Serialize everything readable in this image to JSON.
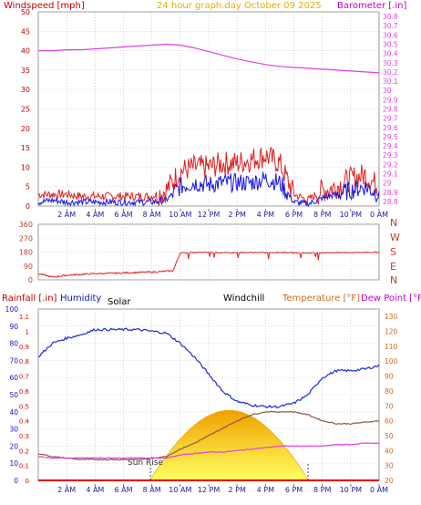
{
  "header": {
    "left_title": "Windspeed [mph]",
    "center_title": "24 hour graph.day   October 09 2025",
    "right_title": "Barometer [.in]"
  },
  "colors": {
    "wind_gust": "#e02020",
    "wind_avg": "#1414e6",
    "barometer": "#e040e0",
    "direction": "#e02020",
    "humidity": "#1e2ad0",
    "temperature": "#8a5a3c",
    "dew_point": "#e040e0",
    "temp_axis": "#d2691e",
    "solar_fill_top": "#f0a000",
    "solar_fill_bottom": "#ffff60",
    "rain": "#e00000",
    "left_axis": "#c00000",
    "mid_axis": "#1414b4",
    "dir_axis": "#c04030"
  },
  "x_ticks": [
    "2 AM",
    "4 AM",
    "6 AM",
    "8 AM",
    "10 AM",
    "12 PM",
    "2 PM",
    "4 PM",
    "6 PM",
    "8 PM",
    "10 PM",
    "0 AM"
  ],
  "chart_data": [
    {
      "type": "line",
      "id": "wind_barometer",
      "title": "24 hour graph.day   October 09 2025",
      "ylabel": "Windspeed [mph]",
      "y2label": "Barometer [.in]",
      "ylim": [
        0,
        50
      ],
      "y2lim": [
        28.75,
        30.85
      ],
      "yticks": [
        0,
        5,
        10,
        15,
        20,
        25,
        30,
        35,
        40,
        45,
        50
      ],
      "y2ticks": [
        "28.8",
        "28.9",
        "29",
        "29.1",
        "29.2",
        "29.3",
        "29.4",
        "29.5",
        "29.6",
        "29.7",
        "29.8",
        "29.9",
        "30",
        "30.1",
        "30.2",
        "30.3",
        "30.4",
        "30.5",
        "30.6",
        "30.7",
        "30.8"
      ],
      "x_hours": [
        0,
        1,
        2,
        3,
        4,
        5,
        6,
        7,
        8,
        9,
        10,
        11,
        12,
        13,
        14,
        15,
        16,
        17,
        18,
        19,
        20,
        21,
        22,
        23,
        24
      ],
      "series": [
        {
          "name": "Wind Gust",
          "axis": "left",
          "values": [
            3,
            3,
            3,
            2.5,
            2.5,
            2.5,
            2.5,
            2.5,
            2.5,
            4,
            9,
            10,
            10,
            11,
            11,
            12,
            13,
            11,
            3,
            1.5,
            4,
            5,
            7,
            8,
            5
          ]
        },
        {
          "name": "Wind Average",
          "axis": "left",
          "values": [
            1,
            1.5,
            1,
            1,
            1,
            1,
            1,
            1,
            1,
            1.5,
            5,
            6,
            5.5,
            6,
            6,
            6,
            7,
            6,
            1,
            0.5,
            2,
            3,
            4,
            5,
            3
          ]
        },
        {
          "name": "Barometer",
          "axis": "right",
          "values": [
            30.43,
            30.43,
            30.44,
            30.44,
            30.45,
            30.46,
            30.47,
            30.48,
            30.49,
            30.5,
            30.49,
            30.46,
            30.42,
            30.38,
            30.34,
            30.31,
            30.28,
            30.26,
            30.25,
            30.24,
            30.23,
            30.22,
            30.21,
            30.2,
            30.19
          ]
        }
      ]
    },
    {
      "type": "line",
      "id": "wind_direction",
      "ylim": [
        0,
        360
      ],
      "yticks": [
        0,
        90,
        180,
        270,
        360
      ],
      "right_labels": [
        "N",
        "W",
        "S",
        "E",
        "N"
      ],
      "x_hours": [
        0,
        1,
        2,
        3,
        4,
        5,
        6,
        7,
        8,
        9,
        9.5,
        10,
        11,
        12,
        13,
        14,
        15,
        16,
        17,
        18,
        19,
        20,
        21,
        22,
        23,
        24
      ],
      "series": [
        {
          "name": "Wind Direction",
          "values": [
            40,
            18,
            30,
            35,
            40,
            42,
            45,
            48,
            50,
            55,
            60,
            175,
            176,
            178,
            175,
            176,
            177,
            176,
            178,
            175,
            174,
            175,
            176,
            177,
            178,
            179
          ]
        }
      ]
    },
    {
      "type": "line",
      "id": "rain_humidity_temp",
      "left_title": "Rainfall [.in]",
      "mid_title": "Humidity",
      "solar_title": "Solar",
      "windchill_title": "Windchill",
      "right_title": "Temperature [°F]",
      "right_title2": "Dew Point [°F]",
      "annotation": "Sun Rise",
      "humidity_lim": [
        0,
        100
      ],
      "humidity_ticks": [
        0,
        10,
        20,
        30,
        40,
        50,
        60,
        70,
        80,
        90,
        100
      ],
      "rain_lim": [
        0,
        1.15
      ],
      "rain_ticks": [
        "0",
        "0.1",
        "0.2",
        "0.3",
        "0.4",
        "0.5",
        "0.6",
        "0.7",
        "0.8",
        "0.9",
        "1",
        "1.1"
      ],
      "temp_lim": [
        20,
        135
      ],
      "temp_ticks": [
        20,
        30,
        40,
        50,
        60,
        70,
        80,
        90,
        100,
        110,
        120,
        130
      ],
      "x_hours": [
        0,
        1,
        2,
        3,
        4,
        5,
        6,
        7,
        8,
        9,
        10,
        11,
        12,
        13,
        14,
        15,
        16,
        17,
        18,
        19,
        20,
        21,
        22,
        23,
        24
      ],
      "sunrise_hour": 7.9,
      "sunset_hour": 19.0,
      "solar_peak_f": 67,
      "series": [
        {
          "name": "Humidity",
          "axis": "humidity",
          "values": [
            72,
            80,
            83,
            85,
            88,
            88,
            88,
            88,
            87,
            86,
            80,
            72,
            62,
            52,
            46,
            44,
            43,
            43,
            45,
            50,
            60,
            64,
            64,
            65,
            67
          ]
        },
        {
          "name": "Temperature",
          "axis": "temp",
          "values": [
            38,
            36,
            35,
            34,
            34,
            34,
            34,
            34,
            35,
            36,
            41,
            45,
            50,
            55,
            60,
            64,
            66,
            66,
            66,
            64,
            60,
            58,
            58,
            59,
            60
          ]
        },
        {
          "name": "Dew Point",
          "axis": "temp",
          "values": [
            36,
            35,
            35,
            35,
            35,
            35,
            35,
            35,
            35,
            35,
            37,
            38,
            39,
            39,
            40,
            41,
            42,
            43,
            43,
            43,
            43,
            44,
            44,
            45,
            45
          ]
        },
        {
          "name": "Rainfall",
          "axis": "rain",
          "values": [
            0,
            0,
            0,
            0,
            0,
            0,
            0,
            0,
            0,
            0,
            0,
            0,
            0,
            0,
            0,
            0,
            0,
            0,
            0,
            0,
            0,
            0,
            0,
            0,
            0
          ]
        }
      ]
    }
  ]
}
